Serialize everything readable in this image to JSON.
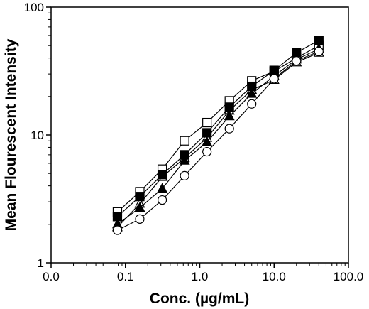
{
  "chart_data": {
    "type": "scatter",
    "xscale": "log",
    "yscale": "log",
    "xlabel": "Conc. (µg/mL)",
    "ylabel": "Mean Flourescent Intensity",
    "xlim": [
      0.01,
      100
    ],
    "ylim": [
      1,
      100
    ],
    "x_tick_labels": [
      "0.0",
      "0.1",
      "1.0",
      "10.0",
      "100.0"
    ],
    "y_tick_labels": [
      "1",
      "10",
      "100"
    ],
    "grid": false,
    "legend": "none",
    "x": [
      0.078,
      0.156,
      0.3125,
      0.625,
      1.25,
      2.5,
      5,
      10,
      20,
      40
    ],
    "series": [
      {
        "marker": "open-square",
        "values": [
          2.5,
          3.6,
          5.4,
          9.0,
          12.5,
          18.5,
          26.5,
          31.5,
          40,
          50
        ]
      },
      {
        "marker": "filled-square",
        "values": [
          2.3,
          3.3,
          4.9,
          7.0,
          10.4,
          16.5,
          24,
          32,
          44,
          55
        ]
      },
      {
        "marker": "filled-triangle",
        "values": [
          2.0,
          2.7,
          3.8,
          6.3,
          8.8,
          14,
          21,
          29,
          39,
          47
        ]
      },
      {
        "marker": "open-triangle",
        "values": [
          1.9,
          2.9,
          4.7,
          6.6,
          9.5,
          15.5,
          22.5,
          27,
          37,
          44
        ]
      },
      {
        "marker": "open-circle",
        "values": [
          1.8,
          2.2,
          3.1,
          4.8,
          7.4,
          11.2,
          17.5,
          27.5,
          38,
          45
        ]
      }
    ]
  }
}
